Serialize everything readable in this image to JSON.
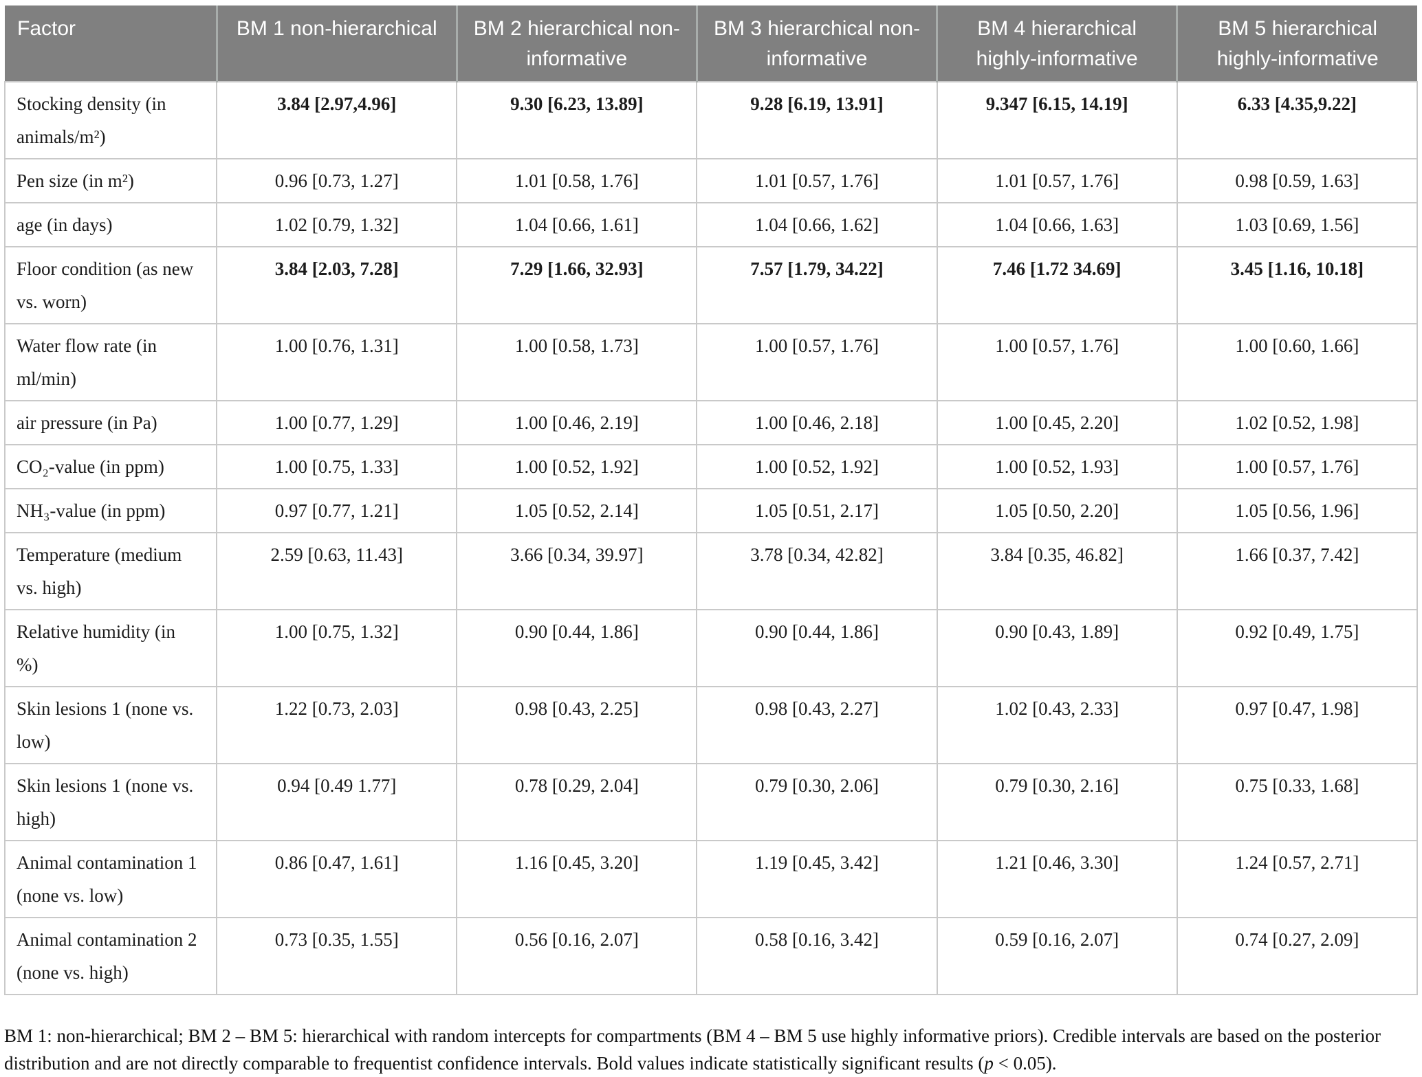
{
  "table": {
    "columns": [
      "Factor",
      "BM 1 non-hierarchical",
      "BM 2 hierarchical non-informative",
      "BM 3 hierarchical non-informative",
      "BM 4 hierarchical highly-informative",
      "BM 5 hierarchical highly-informative"
    ],
    "rows": [
      {
        "factor": "Stocking density (in animals/m²)",
        "bold": true,
        "values": [
          "3.84 [2.97,4.96]",
          "9.30 [6.23, 13.89]",
          "9.28 [6.19, 13.91]",
          "9.347 [6.15, 14.19]",
          "6.33 [4.35,9.22]"
        ]
      },
      {
        "factor": "Pen size (in m²)",
        "bold": false,
        "values": [
          "0.96 [0.73, 1.27]",
          "1.01 [0.58, 1.76]",
          "1.01 [0.57, 1.76]",
          "1.01 [0.57, 1.76]",
          "0.98 [0.59, 1.63]"
        ]
      },
      {
        "factor": "age (in days)",
        "bold": false,
        "values": [
          "1.02 [0.79, 1.32]",
          "1.04 [0.66, 1.61]",
          "1.04 [0.66, 1.62]",
          "1.04 [0.66, 1.63]",
          "1.03 [0.69, 1.56]"
        ]
      },
      {
        "factor": "Floor condition (as new vs. worn)",
        "bold": true,
        "values": [
          "3.84 [2.03, 7.28]",
          "7.29 [1.66, 32.93]",
          "7.57 [1.79, 34.22]",
          "7.46 [1.72 34.69]",
          "3.45 [1.16, 10.18]"
        ]
      },
      {
        "factor": "Water flow rate (in ml/min)",
        "bold": false,
        "values": [
          "1.00 [0.76, 1.31]",
          "1.00 [0.58, 1.73]",
          "1.00 [0.57, 1.76]",
          "1.00 [0.57, 1.76]",
          "1.00 [0.60, 1.66]"
        ]
      },
      {
        "factor": "air pressure (in Pa)",
        "bold": false,
        "values": [
          "1.00 [0.77, 1.29]",
          "1.00 [0.46, 2.19]",
          "1.00 [0.46, 2.18]",
          "1.00 [0.45, 2.20]",
          "1.02 [0.52, 1.98]"
        ]
      },
      {
        "factor": "CO₂-value (in ppm)",
        "bold": false,
        "values": [
          "1.00 [0.75, 1.33]",
          "1.00 [0.52, 1.92]",
          "1.00 [0.52, 1.92]",
          "1.00 [0.52, 1.93]",
          "1.00 [0.57, 1.76]"
        ]
      },
      {
        "factor": "NH₃-value (in ppm)",
        "bold": false,
        "values": [
          "0.97 [0.77, 1.21]",
          "1.05 [0.52, 2.14]",
          "1.05 [0.51, 2.17]",
          "1.05 [0.50, 2.20]",
          "1.05 [0.56, 1.96]"
        ]
      },
      {
        "factor": "Temperature (medium vs. high)",
        "bold": false,
        "values": [
          "2.59 [0.63, 11.43]",
          "3.66 [0.34, 39.97]",
          "3.78 [0.34, 42.82]",
          "3.84 [0.35, 46.82]",
          "1.66 [0.37, 7.42]"
        ]
      },
      {
        "factor": "Relative humidity (in %)",
        "bold": false,
        "values": [
          "1.00 [0.75, 1.32]",
          "0.90 [0.44, 1.86]",
          "0.90 [0.44, 1.86]",
          "0.90 [0.43, 1.89]",
          "0.92 [0.49, 1.75]"
        ]
      },
      {
        "factor": "Skin lesions 1 (none vs. low)",
        "bold": false,
        "values": [
          "1.22 [0.73, 2.03]",
          "0.98 [0.43, 2.25]",
          "0.98 [0.43, 2.27]",
          "1.02 [0.43, 2.33]",
          "0.97 [0.47, 1.98]"
        ]
      },
      {
        "factor": "Skin lesions 1 (none vs. high)",
        "bold": false,
        "values": [
          "0.94 [0.49 1.77]",
          "0.78 [0.29, 2.04]",
          "0.79 [0.30, 2.06]",
          "0.79 [0.30, 2.16]",
          "0.75 [0.33, 1.68]"
        ]
      },
      {
        "factor": "Animal contamination 1 (none vs. low)",
        "bold": false,
        "values": [
          "0.86 [0.47, 1.61]",
          "1.16 [0.45, 3.20]",
          "1.19 [0.45, 3.42]",
          "1.21 [0.46, 3.30]",
          "1.24 [0.57, 2.71]"
        ]
      },
      {
        "factor": "Animal contamination 2 (none vs. high)",
        "bold": false,
        "values": [
          "0.73 [0.35, 1.55]",
          "0.56 [0.16, 2.07]",
          "0.58 [0.16, 3.42]",
          "0.59 [0.16, 2.07]",
          "0.74 [0.27, 2.09]"
        ]
      }
    ]
  },
  "footnote": {
    "text_before_p": "BM 1: non-hierarchical; BM 2 – BM 5: hierarchical with random intercepts for compartments (BM 4 – BM 5 use highly informative priors). Credible intervals are based on the posterior distribution and are not directly comparable to frequentist confidence intervals. Bold values indicate statistically significant results (",
    "p_symbol": "p",
    "text_after_p": " < 0.05)."
  },
  "colors": {
    "header_bg": "#808080",
    "header_text": "#ffffff",
    "body_text": "#1c1c1c",
    "border": "#c9c9c9",
    "header_divider": "#a8adab"
  }
}
